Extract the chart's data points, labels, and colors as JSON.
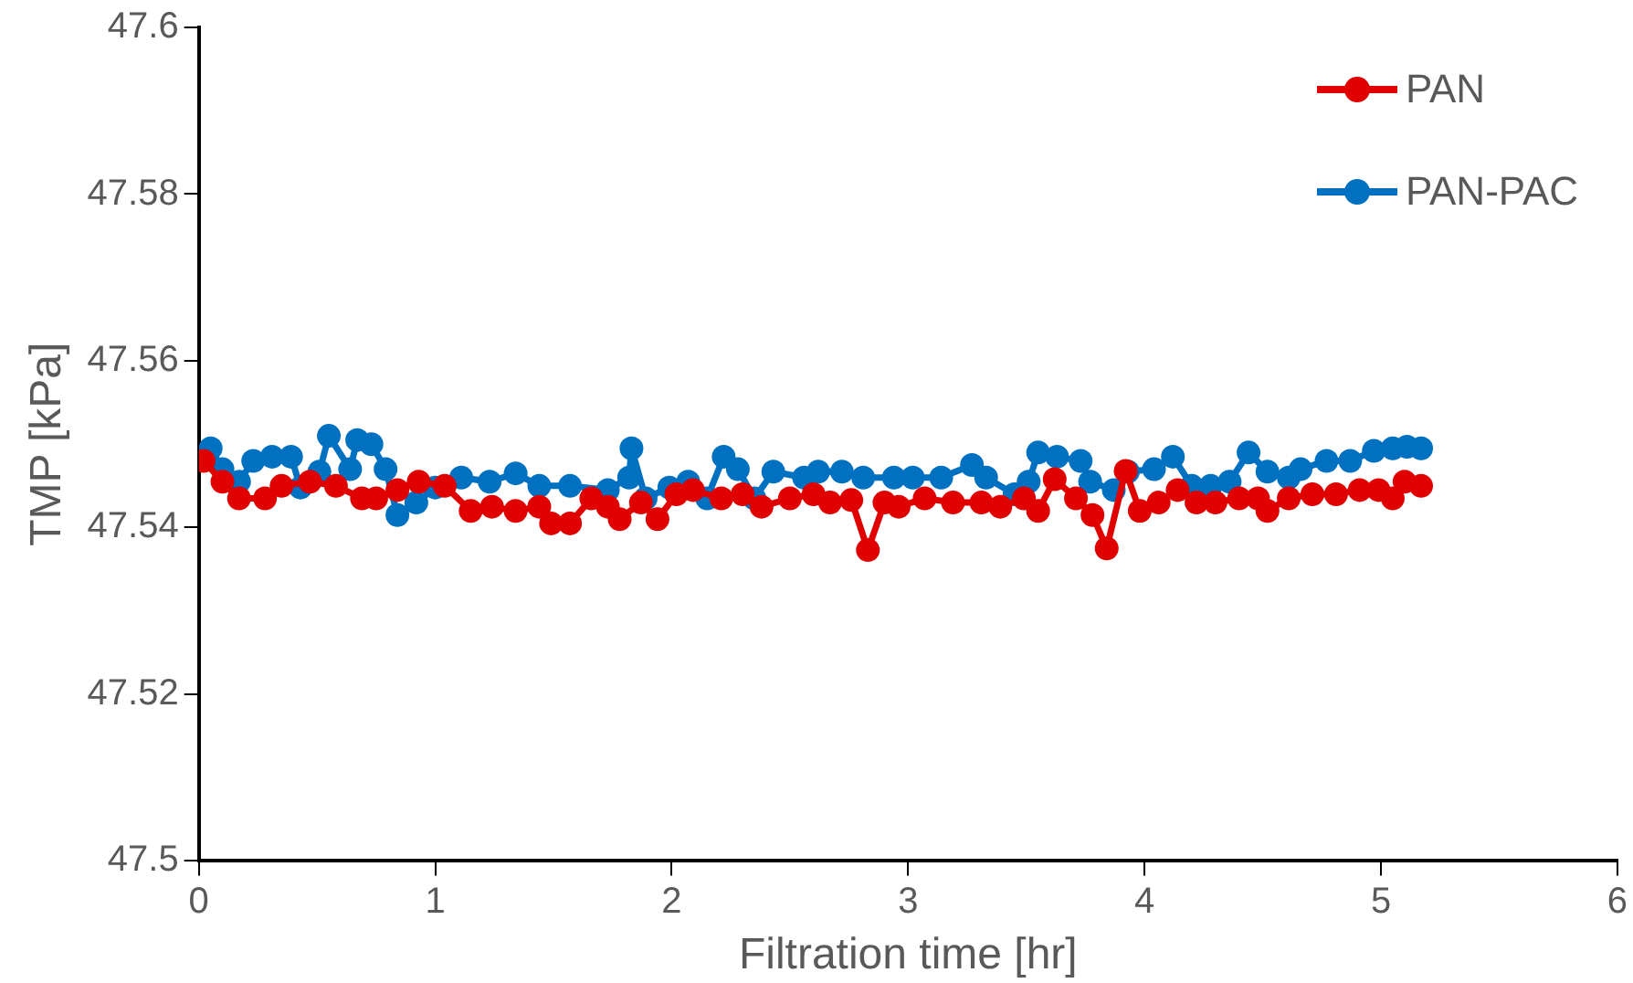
{
  "chart_data": {
    "type": "line",
    "xlabel": "Filtration time [hr]",
    "ylabel": "TMP [kPa]",
    "xlim": [
      0,
      6
    ],
    "xticks": [
      0,
      1,
      2,
      3,
      4,
      5,
      6
    ],
    "ylim": [
      47.5,
      47.6
    ],
    "yticks": [
      47.5,
      47.52,
      47.54,
      47.56,
      47.58,
      47.6
    ],
    "grid": false,
    "legend": "top right",
    "marker": "circle",
    "line_style": "solid",
    "series": [
      {
        "name": "PAN",
        "color": "#e00000",
        "x": [
          0.02,
          0.1,
          0.17,
          0.28,
          0.35,
          0.47,
          0.58,
          0.69,
          0.75,
          0.84,
          0.93,
          1.04,
          1.15,
          1.24,
          1.34,
          1.44,
          1.49,
          1.57,
          1.66,
          1.73,
          1.78,
          1.87,
          1.94,
          2.02,
          2.09,
          2.21,
          2.3,
          2.38,
          2.5,
          2.6,
          2.67,
          2.76,
          2.83,
          2.9,
          2.96,
          3.07,
          3.19,
          3.31,
          3.39,
          3.49,
          3.55,
          3.62,
          3.71,
          3.78,
          3.84,
          3.92,
          3.98,
          4.06,
          4.14,
          4.22,
          4.3,
          4.4,
          4.48,
          4.52,
          4.61,
          4.71,
          4.81,
          4.91,
          4.99,
          5.05,
          5.1,
          5.17
        ],
        "values": [
          47.548,
          47.5455,
          47.5435,
          47.5435,
          47.545,
          47.5455,
          47.545,
          47.5435,
          47.5435,
          47.5445,
          47.5455,
          47.545,
          47.542,
          47.5425,
          47.542,
          47.5425,
          47.5405,
          47.5405,
          47.5435,
          47.5425,
          47.541,
          47.543,
          47.541,
          47.544,
          47.5445,
          47.5435,
          47.544,
          47.5425,
          47.5435,
          47.544,
          47.543,
          47.5433,
          47.5373,
          47.543,
          47.5425,
          47.5435,
          47.543,
          47.543,
          47.5425,
          47.5435,
          47.542,
          47.5458,
          47.5435,
          47.5415,
          47.5375,
          47.5468,
          47.542,
          47.543,
          47.5445,
          47.543,
          47.543,
          47.5435,
          47.5435,
          47.542,
          47.5435,
          47.544,
          47.544,
          47.5445,
          47.5445,
          47.5435,
          47.5455,
          47.545
        ]
      },
      {
        "name": "PAN-PAC",
        "color": "#0070c0",
        "x": [
          0.05,
          0.1,
          0.17,
          0.23,
          0.31,
          0.39,
          0.43,
          0.51,
          0.55,
          0.64,
          0.67,
          0.73,
          0.79,
          0.84,
          0.92,
          1.0,
          1.11,
          1.23,
          1.34,
          1.44,
          1.57,
          1.73,
          1.82,
          1.83,
          1.89,
          1.99,
          2.07,
          2.15,
          2.22,
          2.28,
          2.35,
          2.43,
          2.56,
          2.62,
          2.72,
          2.81,
          2.94,
          3.02,
          3.14,
          3.27,
          3.33,
          3.45,
          3.51,
          3.55,
          3.63,
          3.73,
          3.77,
          3.87,
          3.93,
          4.04,
          4.12,
          4.2,
          4.28,
          4.36,
          4.44,
          4.52,
          4.61,
          4.66,
          4.77,
          4.87,
          4.97,
          5.05,
          5.11,
          5.17
        ],
        "values": [
          47.5495,
          47.547,
          47.5455,
          47.548,
          47.5485,
          47.5485,
          47.5448,
          47.5467,
          47.551,
          47.547,
          47.5505,
          47.55,
          47.547,
          47.5415,
          47.543,
          47.5448,
          47.546,
          47.5455,
          47.5465,
          47.545,
          47.545,
          47.5445,
          47.546,
          47.5495,
          47.5435,
          47.5448,
          47.5455,
          47.5435,
          47.5485,
          47.547,
          47.5435,
          47.5467,
          47.546,
          47.5467,
          47.5467,
          47.546,
          47.546,
          47.546,
          47.546,
          47.5475,
          47.546,
          47.544,
          47.5455,
          47.549,
          47.5485,
          47.548,
          47.5455,
          47.5445,
          47.5467,
          47.547,
          47.5485,
          47.545,
          47.545,
          47.5455,
          47.549,
          47.5467,
          47.546,
          47.547,
          47.548,
          47.548,
          47.5492,
          47.5495,
          47.5497,
          47.5495
        ]
      }
    ]
  }
}
